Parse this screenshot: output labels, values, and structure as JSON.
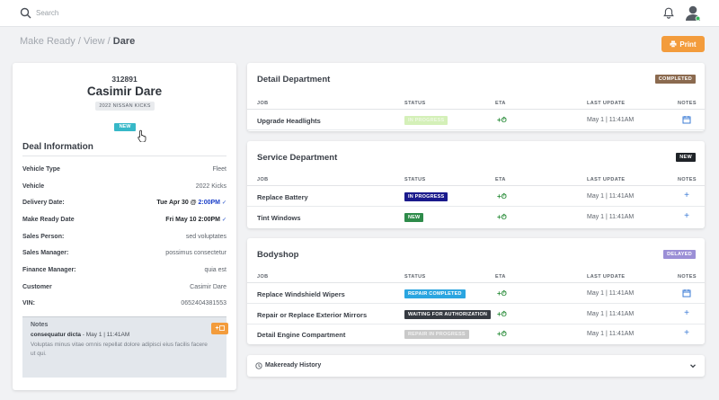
{
  "topbar": {
    "search_placeholder": "Search"
  },
  "breadcrumb": {
    "part1": "Make Ready",
    "sep": " / ",
    "part2": "View",
    "current": "Dare"
  },
  "print_label": "Print",
  "deal": {
    "number": "312891",
    "name": "Casimir Dare",
    "vehicle_tag": "2022 NISSAN KICKS",
    "status": "NEW",
    "info_title": "Deal Information",
    "fields": [
      {
        "label": "Vehicle Type",
        "value": "Fleet"
      },
      {
        "label": "Vehicle",
        "value": "2022 Kicks"
      },
      {
        "label": "Delivery Date:",
        "value": "Tue Apr 30 @",
        "time": "2:00PM"
      },
      {
        "label": "Make Ready Date",
        "value": "Fri May 10",
        "time": "2:00PM"
      },
      {
        "label": "Sales Person:",
        "value": "sed voluptates"
      },
      {
        "label": "Sales Manager:",
        "value": "possimus consectetur"
      },
      {
        "label": "Finance Manager:",
        "value": "quia est"
      },
      {
        "label": "Customer",
        "value": "Casimir Dare"
      },
      {
        "label": "VIN:",
        "value": "0652404381553"
      }
    ],
    "notes": {
      "title": "Notes",
      "author": "consequatur dicta",
      "date": "- May 1 | 11:41AM",
      "body": "Voluptas minus vitae omnis repellat dolore adipisci eius facilis facere ut qui.",
      "add_label": "+"
    }
  },
  "columns": {
    "job": "JOB",
    "status": "STATUS",
    "eta": "ETA",
    "last_update": "LAST UPDATE",
    "notes": "NOTES"
  },
  "departments": [
    {
      "title": "Detail Department",
      "badge": "COMPLETED",
      "badge_color": "#8b6a4f",
      "rows": [
        {
          "job": "Upgrade Headlights",
          "status": "IN PROGRESS",
          "status_color": "#d4f0b8",
          "eta": "+⏱",
          "updated": "May 1 | 11:41AM",
          "note": "calendar-icon"
        }
      ]
    },
    {
      "title": "Service Department",
      "badge": "NEW",
      "badge_color": "#1f2328",
      "rows": [
        {
          "job": "Replace Battery",
          "status": "IN PROGRESS",
          "status_color": "#1a1a8c",
          "eta": "+⏱",
          "updated": "May 1 | 11:41AM",
          "note": "plus-icon"
        },
        {
          "job": "Tint Windows",
          "status": "NEW",
          "status_color": "#2e8b4a",
          "eta": "+⏱",
          "updated": "May 1 | 11:41AM",
          "note": "plus-icon"
        }
      ]
    },
    {
      "title": "Bodyshop",
      "badge": "DELAYED",
      "badge_color": "#9b8fd6",
      "rows": [
        {
          "job": "Replace Windshield Wipers",
          "status": "REPAIR COMPLETED",
          "status_color": "#2aa5e0",
          "eta": "+⏱",
          "updated": "May 1 | 11:41AM",
          "note": "calendar-icon"
        },
        {
          "job": "Repair or Replace Exterior Mirrors",
          "status": "WAITING FOR AUTHORIZATION",
          "status_color": "#353a41",
          "eta": "+⏱",
          "updated": "May 1 | 11:41AM",
          "note": "plus-icon"
        },
        {
          "job": "Detail Engine Compartment",
          "status": "REPAIR IN PROGRESS",
          "status_color": "#c9c9c9",
          "eta": "+⏱",
          "updated": "May 1 | 11:41AM",
          "note": "plus-icon"
        }
      ]
    }
  ],
  "history": {
    "title": "Makeready History"
  }
}
